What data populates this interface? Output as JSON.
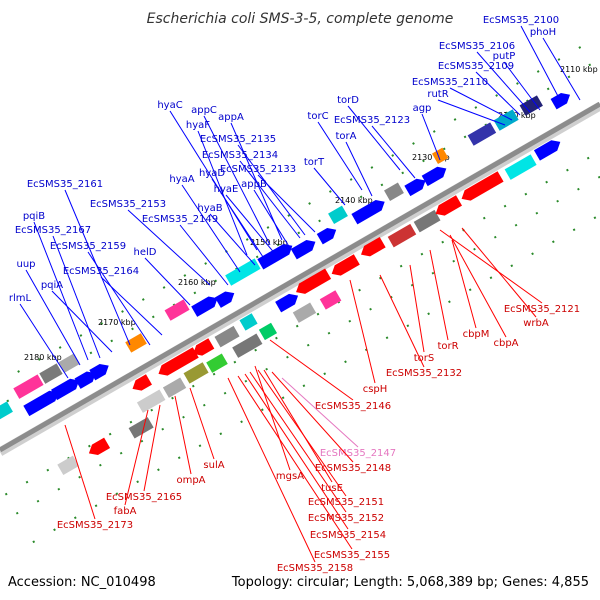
{
  "title": "Escherichia coli SMS-3-5, complete genome",
  "footer": {
    "accession": "Accession: NC_010498",
    "topology": "Topology: circular; Length: 5,068,389 bp; Genes: 4,855"
  },
  "colors": {
    "forward": "#0000ff",
    "reverse": "#ff0000",
    "forward_label": "#0000cc",
    "reverse_label": "#cc0000",
    "highlight_label": "#e577c0",
    "backbone": "#8c8c8c"
  },
  "kbp_ticks": [
    "2110 kbp",
    "2120 kbp",
    "2130 kbp",
    "2140 kbp",
    "2150 kbp",
    "2160 kbp",
    "2170 kbp",
    "2180 kbp"
  ],
  "forward_genes": [
    "phoH",
    "EcSMS35_2100",
    "putP",
    "EcSMS35_2106",
    "EcSMS35_2109",
    "EcSMS35_2110",
    "rutR",
    "agp",
    "torD",
    "EcSMS35_2123",
    "torC",
    "torA",
    "torT",
    "hyaC",
    "appC",
    "appA",
    "hyaF",
    "EcSMS35_2135",
    "EcSMS35_2134",
    "EcSMS35_2133",
    "hyaD",
    "hyaE",
    "appB",
    "hyaA",
    "hyaB",
    "EcSMS35_2153",
    "EcSMS35_2149",
    "EcSMS35_2161",
    "helD",
    "pqiB",
    "EcSMS35_2167",
    "EcSMS35_2159",
    "EcSMS35_2164",
    "uup",
    "pqiA",
    "rlmL"
  ],
  "reverse_genes": [
    "EcSMS35_2121",
    "wrbA",
    "cbpA",
    "cbpM",
    "torR",
    "torS",
    "EcSMS35_2132",
    "cspH",
    "EcSMS35_2146",
    "EcSMS35_2147",
    "EcSMS35_2148",
    "mgsA",
    "tusE",
    "EcSMS35_2151",
    "EcSMS35_2152",
    "EcSMS35_2154",
    "EcSMS35_2155",
    "EcSMS35_2158",
    "sulA",
    "ompA",
    "EcSMS35_2165",
    "fabA",
    "EcSMS35_2173"
  ]
}
